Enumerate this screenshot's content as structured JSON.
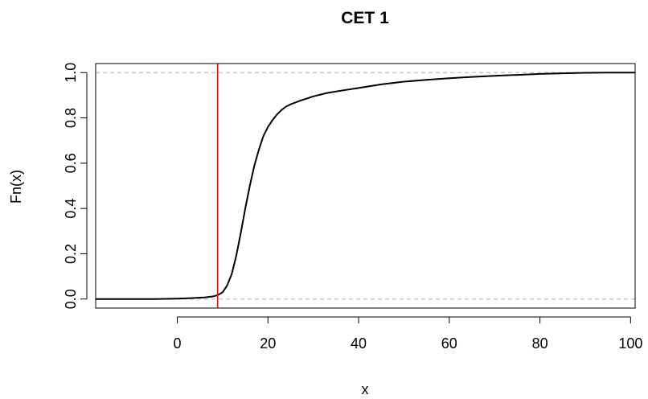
{
  "chart_data": {
    "type": "line",
    "title": "CET 1",
    "xlabel": "x",
    "ylabel": "Fn(x)",
    "xlim": [
      -18,
      101
    ],
    "ylim": [
      -0.04,
      1.04
    ],
    "xticks": [
      "0",
      "20",
      "40",
      "60",
      "80",
      "100"
    ],
    "yticks": [
      "0.0",
      "0.2",
      "0.4",
      "0.6",
      "0.8",
      "1.0"
    ],
    "series": [
      {
        "color": "#000000",
        "x": [
          -18,
          -5,
          0,
          3,
          6,
          8,
          9,
          10,
          11,
          12,
          13,
          14,
          15,
          16,
          17,
          18,
          19,
          20,
          21,
          22,
          23,
          24,
          25,
          27,
          30,
          33,
          36,
          40,
          45,
          50,
          55,
          60,
          65,
          70,
          75,
          80,
          85,
          90,
          95,
          100,
          101
        ],
        "y": [
          0.0,
          0.0,
          0.002,
          0.004,
          0.007,
          0.012,
          0.018,
          0.03,
          0.06,
          0.11,
          0.19,
          0.29,
          0.4,
          0.5,
          0.59,
          0.66,
          0.72,
          0.76,
          0.79,
          0.815,
          0.835,
          0.85,
          0.86,
          0.875,
          0.895,
          0.91,
          0.92,
          0.932,
          0.948,
          0.96,
          0.968,
          0.975,
          0.981,
          0.986,
          0.99,
          0.994,
          0.997,
          0.999,
          1.0,
          1.0,
          1.0
        ]
      }
    ],
    "hlines": [
      {
        "y": 0,
        "color": "#bfbfbf",
        "style": "dashed"
      },
      {
        "y": 1,
        "color": "#bfbfbf",
        "style": "dashed"
      }
    ],
    "vline": {
      "x": 8.9,
      "color": "#ff0000"
    },
    "grid": false
  }
}
